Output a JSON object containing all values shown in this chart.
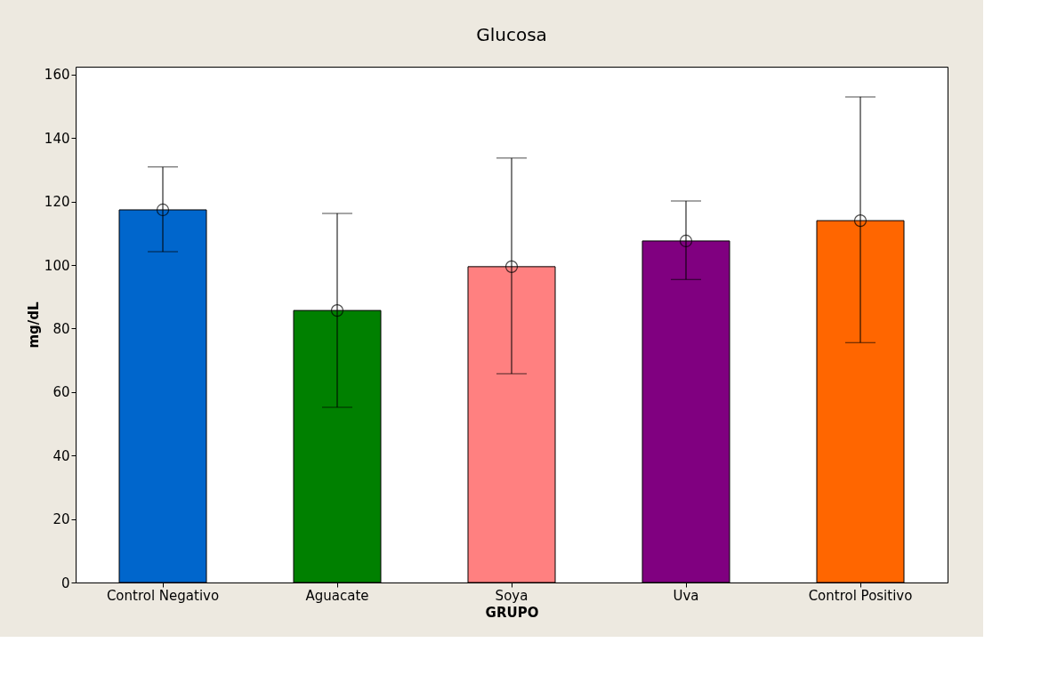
{
  "chart_data": {
    "type": "bar",
    "title": "Glucosa",
    "xlabel": "GRUPO",
    "ylabel": "mg/dL",
    "categories": [
      "Control Negativo",
      "Aguacate",
      "Soya",
      "Uva",
      "Control Positivo"
    ],
    "series": [
      {
        "colors": [
          "#0066cc",
          "#008000",
          "#ff8080",
          "#800080",
          "#ff6600"
        ],
        "values": [
          117.4,
          85.7,
          99.5,
          107.6,
          114.0
        ],
        "errors": [
          [
            104.2,
            130.9
          ],
          [
            55.2,
            116.3
          ],
          [
            65.8,
            133.7
          ],
          [
            95.5,
            120.2
          ],
          [
            75.6,
            153.0
          ]
        ]
      },
      {
        "type": "scatter",
        "x": [
          "Control Negativo",
          "Aguacate",
          "Soya",
          "Uva",
          "Control Positivo"
        ],
        "color": "#000000",
        "marker": "circle",
        "values": [
          117.4,
          85.7,
          99.5,
          107.6,
          114.0
        ]
      }
    ],
    "ylim": [
      0,
      162.5
    ],
    "yticks": [
      0,
      20,
      40,
      60,
      80,
      100,
      120,
      140,
      160
    ],
    "grid": false,
    "legend": false
  }
}
